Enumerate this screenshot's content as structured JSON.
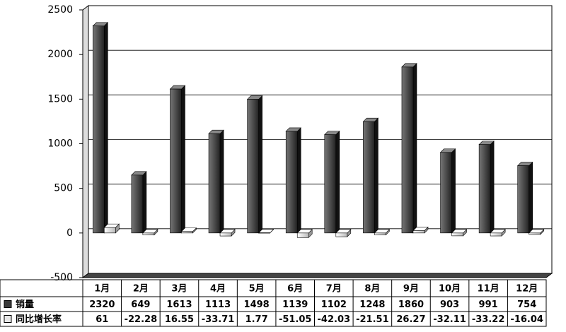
{
  "chart_data": {
    "type": "bar",
    "categories": [
      "1月",
      "2月",
      "3月",
      "4月",
      "5月",
      "6月",
      "7月",
      "8月",
      "9月",
      "10月",
      "11月",
      "12月"
    ],
    "series": [
      {
        "name": "销量",
        "color": "#3a3a3a",
        "values": [
          2320,
          649,
          1613,
          1113,
          1498,
          1139,
          1102,
          1248,
          1860,
          903,
          991,
          754
        ]
      },
      {
        "name": "同比增长率",
        "color": "#e8e8e8",
        "values": [
          61,
          -22.28,
          16.55,
          -33.71,
          1.77,
          -51.05,
          -42.03,
          -21.51,
          26.27,
          -32.11,
          -33.22,
          -16.04
        ]
      }
    ],
    "ylim": [
      -500,
      2500
    ],
    "yticks": [
      -500,
      0,
      500,
      1000,
      1500,
      2000,
      2500
    ],
    "grid": true
  }
}
